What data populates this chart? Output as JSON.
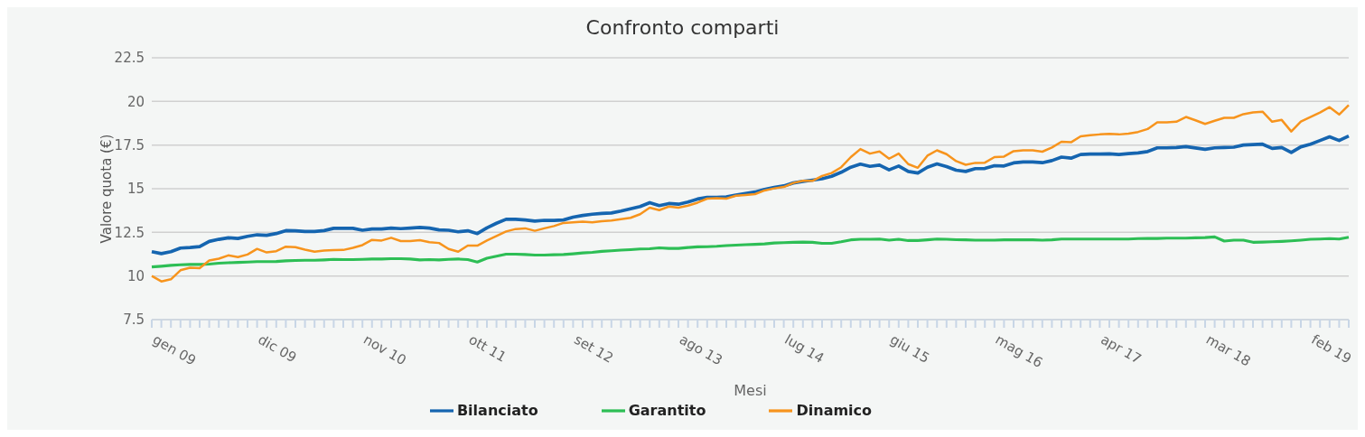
{
  "chart_data": {
    "type": "line",
    "title": "Confronto comparti",
    "xlabel": "Mesi",
    "ylabel": "Valore quota (€)",
    "categories": [
      "gen 09",
      null,
      null,
      null,
      null,
      null,
      null,
      null,
      null,
      null,
      null,
      "dic 09",
      null,
      null,
      null,
      null,
      null,
      null,
      null,
      null,
      null,
      null,
      "nov 10",
      null,
      null,
      null,
      null,
      null,
      null,
      null,
      null,
      null,
      null,
      "ott 11",
      null,
      null,
      null,
      null,
      null,
      null,
      null,
      null,
      null,
      null,
      "set 12",
      null,
      null,
      null,
      null,
      null,
      null,
      null,
      null,
      null,
      null,
      "ago 13",
      null,
      null,
      null,
      null,
      null,
      null,
      null,
      null,
      null,
      null,
      "lug 14",
      null,
      null,
      null,
      null,
      null,
      null,
      null,
      null,
      null,
      null,
      "giu 15",
      null,
      null,
      null,
      null,
      null,
      null,
      null,
      null,
      null,
      null,
      "mag 16",
      null,
      null,
      null,
      null,
      null,
      null,
      null,
      null,
      null,
      null,
      "apr 17",
      null,
      null,
      null,
      null,
      null,
      null,
      null,
      null,
      null,
      null,
      "mar 18",
      null,
      null,
      null,
      null,
      null,
      null,
      null,
      null,
      null,
      null,
      "feb 19",
      null,
      null,
      null,
      null
    ],
    "series": [
      {
        "name": "Bilanciato",
        "color": "#1565b0",
        "values": [
          11.39,
          11.28,
          11.39,
          11.6,
          11.63,
          11.68,
          11.98,
          12.1,
          12.19,
          12.15,
          12.27,
          12.36,
          12.33,
          12.43,
          12.6,
          12.59,
          12.55,
          12.55,
          12.6,
          12.73,
          12.73,
          12.73,
          12.62,
          12.69,
          12.69,
          12.74,
          12.71,
          12.74,
          12.78,
          12.74,
          12.64,
          12.62,
          12.53,
          12.59,
          12.43,
          12.76,
          13.02,
          13.25,
          13.25,
          13.21,
          13.14,
          13.19,
          13.18,
          13.21,
          13.37,
          13.47,
          13.54,
          13.58,
          13.61,
          13.72,
          13.85,
          13.98,
          14.2,
          14.03,
          14.15,
          14.11,
          14.24,
          14.41,
          14.5,
          14.5,
          14.53,
          14.64,
          14.72,
          14.81,
          14.96,
          15.07,
          15.16,
          15.33,
          15.42,
          15.49,
          15.57,
          15.71,
          15.94,
          16.23,
          16.41,
          16.28,
          16.35,
          16.08,
          16.3,
          15.99,
          15.9,
          16.23,
          16.42,
          16.27,
          16.06,
          15.99,
          16.15,
          16.16,
          16.32,
          16.3,
          16.48,
          16.53,
          16.53,
          16.49,
          16.61,
          16.81,
          16.75,
          16.96,
          16.98,
          16.98,
          17.0,
          16.96,
          17.01,
          17.05,
          17.13,
          17.34,
          17.34,
          17.36,
          17.41,
          17.33,
          17.26,
          17.34,
          17.36,
          17.38,
          17.5,
          17.53,
          17.55,
          17.31,
          17.36,
          17.08,
          17.4,
          17.55,
          17.76,
          17.97,
          17.76,
          18.02
        ]
      },
      {
        "name": "Garantito",
        "color": "#2dbe55",
        "values": [
          10.52,
          10.56,
          10.61,
          10.64,
          10.66,
          10.66,
          10.68,
          10.73,
          10.76,
          10.78,
          10.8,
          10.82,
          10.82,
          10.83,
          10.87,
          10.89,
          10.9,
          10.9,
          10.92,
          10.95,
          10.94,
          10.94,
          10.95,
          10.97,
          10.97,
          10.99,
          10.99,
          10.97,
          10.92,
          10.94,
          10.92,
          10.95,
          10.97,
          10.94,
          10.8,
          11.02,
          11.13,
          11.25,
          11.25,
          11.23,
          11.2,
          11.2,
          11.22,
          11.23,
          11.27,
          11.32,
          11.35,
          11.41,
          11.44,
          11.48,
          11.51,
          11.55,
          11.56,
          11.61,
          11.58,
          11.58,
          11.63,
          11.67,
          11.68,
          11.7,
          11.74,
          11.77,
          11.79,
          11.81,
          11.84,
          11.89,
          11.91,
          11.93,
          11.94,
          11.93,
          11.87,
          11.87,
          11.96,
          12.07,
          12.1,
          12.1,
          12.12,
          12.05,
          12.1,
          12.03,
          12.03,
          12.07,
          12.12,
          12.1,
          12.08,
          12.07,
          12.05,
          12.05,
          12.05,
          12.07,
          12.07,
          12.07,
          12.07,
          12.05,
          12.07,
          12.12,
          12.12,
          12.12,
          12.12,
          12.12,
          12.12,
          12.12,
          12.12,
          12.14,
          12.15,
          12.15,
          12.17,
          12.17,
          12.17,
          12.19,
          12.2,
          12.24,
          12.0,
          12.05,
          12.05,
          11.93,
          11.94,
          11.96,
          11.98,
          12.01,
          12.05,
          12.1,
          12.12,
          12.14,
          12.12,
          12.22
        ]
      },
      {
        "name": "Dinamico",
        "color": "#f7941d",
        "values": [
          10.0,
          9.69,
          9.81,
          10.33,
          10.47,
          10.45,
          10.89,
          10.99,
          11.18,
          11.08,
          11.23,
          11.55,
          11.35,
          11.42,
          11.68,
          11.65,
          11.51,
          11.39,
          11.46,
          11.48,
          11.49,
          11.61,
          11.77,
          12.07,
          12.03,
          12.19,
          12.0,
          12.0,
          12.05,
          11.94,
          11.89,
          11.55,
          11.39,
          11.74,
          11.74,
          12.03,
          12.29,
          12.55,
          12.69,
          12.73,
          12.59,
          12.73,
          12.86,
          13.04,
          13.07,
          13.11,
          13.07,
          13.14,
          13.18,
          13.25,
          13.33,
          13.54,
          13.91,
          13.77,
          13.98,
          13.91,
          14.03,
          14.2,
          14.43,
          14.46,
          14.43,
          14.6,
          14.64,
          14.69,
          14.9,
          15.02,
          15.1,
          15.33,
          15.45,
          15.45,
          15.73,
          15.9,
          16.23,
          16.81,
          17.27,
          17.01,
          17.13,
          16.72,
          17.01,
          16.41,
          16.2,
          16.89,
          17.2,
          16.98,
          16.58,
          16.37,
          16.48,
          16.49,
          16.81,
          16.84,
          17.15,
          17.2,
          17.2,
          17.12,
          17.36,
          17.69,
          17.66,
          18.0,
          18.06,
          18.11,
          18.14,
          18.11,
          18.16,
          18.25,
          18.42,
          18.8,
          18.8,
          18.84,
          19.11,
          18.92,
          18.71,
          18.89,
          19.06,
          19.06,
          19.27,
          19.37,
          19.41,
          18.84,
          18.94,
          18.28,
          18.85,
          19.1,
          19.36,
          19.67,
          19.25,
          19.79
        ]
      }
    ],
    "ylim": [
      7.5,
      22.5
    ],
    "yticks": [
      7.5,
      10,
      12.5,
      15,
      17.5,
      20,
      22.5
    ],
    "grid": "y",
    "legend": "bottom",
    "line_style": "solid"
  }
}
